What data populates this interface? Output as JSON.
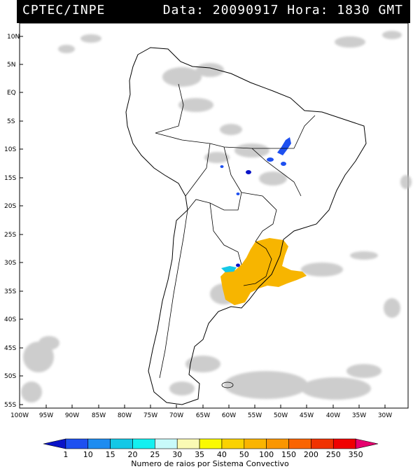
{
  "header": {
    "source": "CPTEC/INPE",
    "datetime": "Data: 20090917 Hora: 1830 GMT"
  },
  "map": {
    "lat_labels": [
      "10N",
      "5N",
      "EQ",
      "5S",
      "10S",
      "15S",
      "20S",
      "25S",
      "30S",
      "35S",
      "40S",
      "45S",
      "50S",
      "55S"
    ],
    "lon_labels": [
      "100W",
      "95W",
      "90W",
      "85W",
      "80W",
      "75W",
      "70W",
      "65W",
      "60W",
      "55W",
      "50W",
      "45W",
      "40W",
      "35W",
      "30W"
    ]
  },
  "legend": {
    "values": [
      "1",
      "10",
      "15",
      "20",
      "25",
      "30",
      "35",
      "40",
      "50",
      "100",
      "150",
      "200",
      "250",
      "350"
    ],
    "title": "Numero de raios por Sistema Convectivo",
    "colors": [
      "#0a14c8",
      "#1e50f0",
      "#1e8cf0",
      "#14c8e6",
      "#14f0f0",
      "#c8fafa",
      "#fafab4",
      "#fafa00",
      "#fad200",
      "#fab400",
      "#fa9600",
      "#fa6400",
      "#f03200",
      "#f00000",
      "#e6006e"
    ]
  }
}
